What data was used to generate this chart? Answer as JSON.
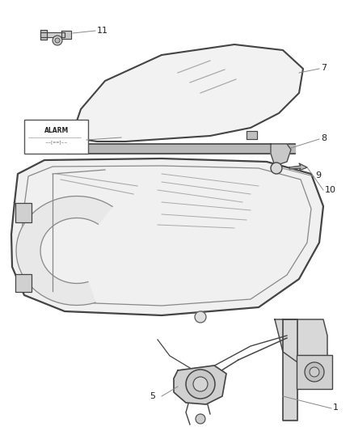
{
  "bg_color": "#ffffff",
  "line_color": "#444444",
  "figsize": [
    4.38,
    5.33
  ],
  "dpi": 100,
  "label_fs": 7,
  "label_color": "#222222"
}
